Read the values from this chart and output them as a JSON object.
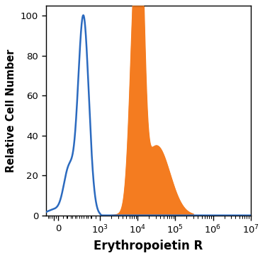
{
  "xlabel": "Erythropoietin R",
  "ylabel": "Relative Cell Number",
  "ylim": [
    0,
    105
  ],
  "yticks": [
    0,
    20,
    40,
    60,
    80,
    100
  ],
  "blue_color": "#2b6abf",
  "orange_color": "#f47c20",
  "background_color": "#ffffff",
  "xlabel_fontsize": 12,
  "ylabel_fontsize": 10.5,
  "tick_fontsize": 9.5,
  "linthresh": 1000,
  "linscale": 1.0,
  "xlim_min": -300,
  "xlim_max": 10000000.0
}
